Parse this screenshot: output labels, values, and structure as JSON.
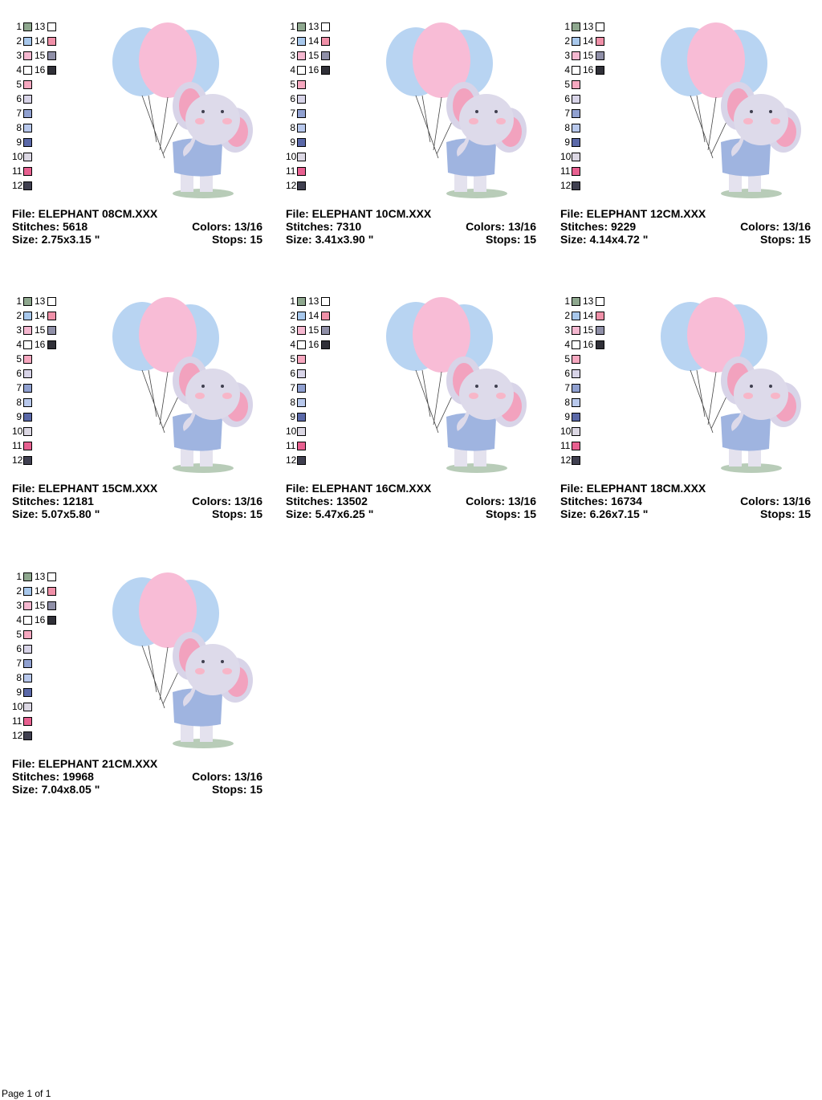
{
  "designs": [
    {
      "file": "File: ELEPHANT 08CM.XXX",
      "stitches": "Stitches: 5618",
      "size": "Size: 2.75x3.15 \"",
      "colors": "Colors: 13/16",
      "stops": "Stops: 15"
    },
    {
      "file": "File: ELEPHANT 10CM.XXX",
      "stitches": "Stitches: 7310",
      "size": "Size: 3.41x3.90 \"",
      "colors": "Colors: 13/16",
      "stops": "Stops: 15"
    },
    {
      "file": "File: ELEPHANT 12CM.XXX",
      "stitches": "Stitches: 9229",
      "size": "Size: 4.14x4.72 \"",
      "colors": "Colors: 13/16",
      "stops": "Stops: 15"
    },
    {
      "file": "File: ELEPHANT 15CM.XXX",
      "stitches": "Stitches: 12181",
      "size": "Size: 5.07x5.80 \"",
      "colors": "Colors: 13/16",
      "stops": "Stops: 15"
    },
    {
      "file": "File: ELEPHANT 16CM.XXX",
      "stitches": "Stitches: 13502",
      "size": "Size: 5.47x6.25 \"",
      "colors": "Colors: 13/16",
      "stops": "Stops: 15"
    },
    {
      "file": "File: ELEPHANT 18CM.XXX",
      "stitches": "Stitches: 16734",
      "size": "Size: 6.26x7.15 \"",
      "colors": "Colors: 13/16",
      "stops": "Stops: 15"
    },
    {
      "file": "File: ELEPHANT 21CM.XXX",
      "stitches": "Stitches: 19968",
      "size": "Size: 7.04x8.05 \"",
      "colors": "Colors: 13/16",
      "stops": "Stops: 15"
    }
  ],
  "palette": [
    {
      "number": 1,
      "color": "#8fa88f"
    },
    {
      "number": 2,
      "color": "#a8c8ec"
    },
    {
      "number": 3,
      "color": "#f5b8d0"
    },
    {
      "number": 4,
      "color": "#ffffff"
    },
    {
      "number": 5,
      "color": "#f7a8c0"
    },
    {
      "number": 6,
      "color": "#d8d4e8"
    },
    {
      "number": 7,
      "color": "#90a0d0"
    },
    {
      "number": 8,
      "color": "#b8c8ec"
    },
    {
      "number": 9,
      "color": "#5a68a8"
    },
    {
      "number": 10,
      "color": "#dcd8e4"
    },
    {
      "number": 11,
      "color": "#e86090"
    },
    {
      "number": 12,
      "color": "#404050"
    },
    {
      "number": 13,
      "color": "#ffffff"
    },
    {
      "number": 14,
      "color": "#f090a8"
    },
    {
      "number": 15,
      "color": "#9090a8"
    },
    {
      "number": 16,
      "color": "#303038"
    }
  ],
  "footer": "Page 1 of 1"
}
